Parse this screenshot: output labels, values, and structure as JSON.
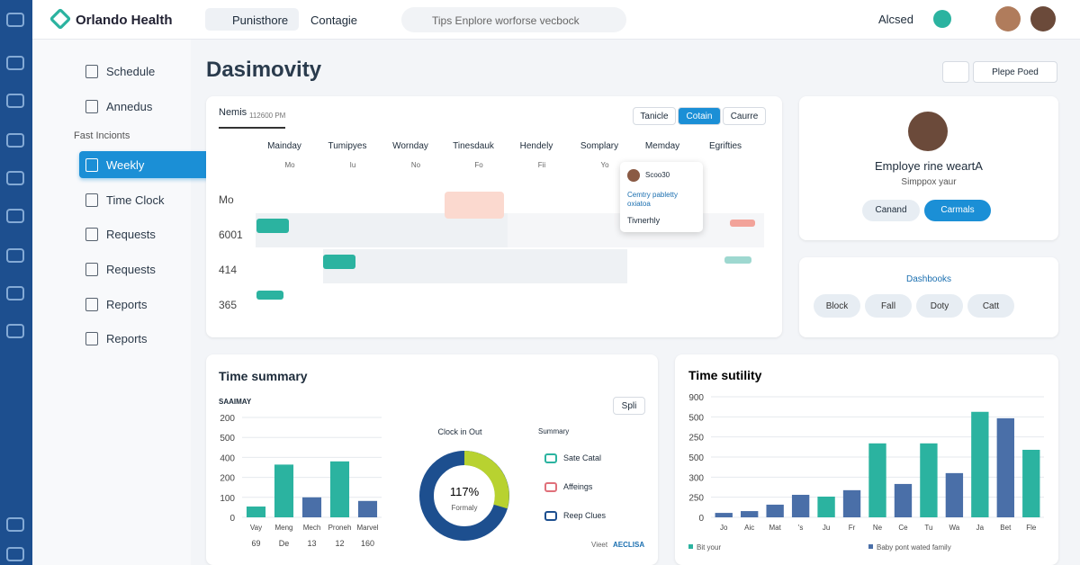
{
  "header": {
    "logo": "Orlando Health",
    "tabs": [
      "Punisthore",
      "Contagie"
    ],
    "search": "Tips Enplore worforse vecbock",
    "user": "Alcsed"
  },
  "sidebar": {
    "items": [
      "Schedule",
      "Annedus",
      "Fast Incionts",
      "Weekly",
      "Time Clock",
      "Requests",
      "Requests",
      "Reports",
      "Reports"
    ]
  },
  "page": {
    "title": "Dasimovity",
    "action": "Plepe Poed"
  },
  "schedule": {
    "label": "Nemis",
    "time": "112600 PM",
    "buttons": [
      "Tanicle",
      "Cotain",
      "Caurre"
    ],
    "days": [
      "Mainday",
      "Tumipyes",
      "Wornday",
      "Tinesdauk",
      "Hendely",
      "Somplary",
      "Memday",
      "Egrifties"
    ],
    "subdays": [
      "Mo",
      "Iu",
      "No",
      "Fo",
      "Fii",
      "Yo"
    ],
    "rows": [
      "Mo",
      "6001",
      "414",
      "365"
    ],
    "popup": {
      "title": "Scoo30",
      "line1": "Cemtry pabletty",
      "line2": "oxiatoa",
      "line3": "Tivnerhly"
    }
  },
  "profile": {
    "name": "Employe rine weartA",
    "sub": "Simppox yaur",
    "buttons": [
      "Canand",
      "Carmals"
    ]
  },
  "dashbooks": {
    "title": "Dashbooks",
    "chips": [
      "Block",
      "Fall",
      "Doty",
      "Catt"
    ]
  },
  "summary": {
    "title": "Time summary",
    "subtitle": "SAAIMAY",
    "split": "Spli",
    "donut_title": "Clock in Out",
    "donut_value": "117%",
    "donut_sub": "Formaly",
    "list_title": "Summary",
    "list": [
      "Sate Catal",
      "Affeings",
      "Reep Clues"
    ],
    "footer": "Vieet",
    "footer_link": "AECLISA"
  },
  "chart_data": [
    {
      "type": "bar",
      "categories": [
        "Vay",
        "Meng",
        "Mech",
        "Proneh",
        "Marvel"
      ],
      "sublabels": [
        "69",
        "De",
        "13",
        "12",
        "160"
      ],
      "values": [
        27,
        132,
        50,
        140,
        41
      ],
      "colors": [
        "#2bb3a0",
        "#2bb3a0",
        "#4a6fa8",
        "#2bb3a0",
        "#4a6fa8"
      ],
      "ylim": [
        0,
        250
      ],
      "yticks": [
        0,
        {
          "value": 50,
          "label": "100"
        },
        {
          "value": 100,
          "label": "200"
        },
        {
          "value": 150,
          "label": "400"
        },
        {
          "value": 200,
          "label": "500"
        },
        {
          "value": 250,
          "label": "200"
        }
      ],
      "grid": true
    },
    {
      "type": "bar",
      "title": "Time sutility",
      "categories": [
        "Jo",
        "Aic",
        "Mat",
        "'s",
        "Ju",
        "Fr",
        "Ne",
        "Ce",
        "Tu",
        "Wa",
        "Ja",
        "Bet",
        "Fle"
      ],
      "values": [
        22,
        31,
        63,
        112,
        103,
        135,
        368,
        166,
        368,
        220,
        525,
        493,
        336
      ],
      "colors": [
        "#4a6fa8",
        "#4a6fa8",
        "#4a6fa8",
        "#4a6fa8",
        "#2bb3a0",
        "#4a6fa8",
        "#2bb3a0",
        "#4a6fa8",
        "#2bb3a0",
        "#4a6fa8",
        "#2bb3a0",
        "#4a6fa8",
        "#2bb3a0"
      ],
      "ylim": [
        0,
        600
      ],
      "yticks": [
        0,
        {
          "value": 100,
          "label": "250"
        },
        {
          "value": 200,
          "label": "300"
        },
        {
          "value": 300,
          "label": "500"
        },
        {
          "value": 400,
          "label": "250"
        },
        {
          "value": 500,
          "label": "500"
        },
        {
          "value": 600,
          "label": "900"
        }
      ],
      "grid": true,
      "legend": [
        {
          "name": "Bit your",
          "color": "#2bb3a0"
        },
        {
          "name": "Baby pont wated family",
          "color": "#4a6fa8"
        }
      ]
    }
  ]
}
